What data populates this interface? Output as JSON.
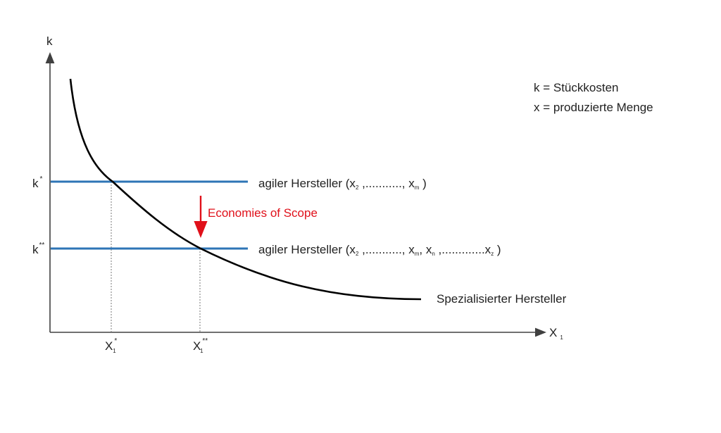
{
  "axes": {
    "y_label": "k",
    "x_label": "X",
    "x_label_sub": "1"
  },
  "legend": {
    "line1": "k = Stückkosten",
    "line2": "x = produzierte Menge"
  },
  "levels": {
    "k1": {
      "base": "k",
      "sup": "*"
    },
    "k2": {
      "base": "k",
      "sup": "**"
    },
    "x1": {
      "base": "X",
      "sup": "*",
      "sub": "1"
    },
    "x2": {
      "base": "X",
      "sup": "**",
      "sub": "1"
    }
  },
  "lines": {
    "agile1": {
      "name": "agiler Hersteller  (x",
      "s1": "2",
      "mid": " ,..........., x",
      "s2": "m",
      "end": " )"
    },
    "agile2": {
      "name": "agiler Hersteller  (x",
      "s1": "2",
      "mid": " ,..........., x",
      "s2": "m",
      "mid2": ", x",
      "s3": "n",
      "mid3": " ,.............x",
      "s4": "z",
      "end": " )"
    },
    "curve_label": "Spezialisierter Hersteller"
  },
  "annotation": {
    "text": "Economies of Scope",
    "color": "#e0101a"
  },
  "colors": {
    "agile_line": "#2e75b6",
    "curve": "#000000",
    "axis": "#404040"
  }
}
